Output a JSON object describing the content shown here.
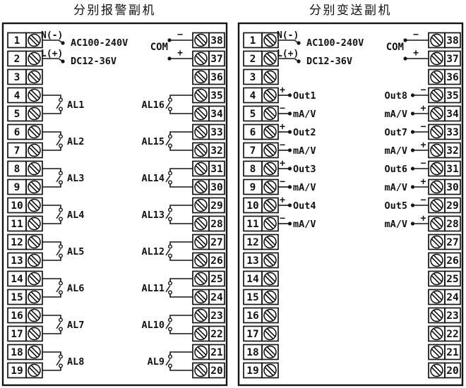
{
  "diagram": {
    "colors": {
      "line": "#151515",
      "background": "#ffffff"
    },
    "panels": [
      {
        "id": "alarm-secondary-unit",
        "title": "分别报警副机",
        "power": {
          "line1_terminal_label": "N(-)",
          "line2_terminal_label": "L(+)",
          "rating_line1": "AC100-240V",
          "rating_line2": "DC12-36V"
        },
        "com": {
          "label": "COM",
          "top_sign": "−",
          "bottom_sign": "+"
        },
        "left_terminals": [
          1,
          2,
          3,
          4,
          5,
          6,
          7,
          8,
          9,
          10,
          11,
          12,
          13,
          14,
          15,
          16,
          17,
          18,
          19
        ],
        "right_terminals": [
          38,
          37,
          36,
          35,
          34,
          33,
          32,
          31,
          30,
          29,
          28,
          27,
          26,
          25,
          24,
          23,
          22,
          21,
          20
        ],
        "switches_left": [
          {
            "terminals": [
              4,
              5
            ],
            "label": "AL1"
          },
          {
            "terminals": [
              6,
              7
            ],
            "label": "AL2"
          },
          {
            "terminals": [
              8,
              9
            ],
            "label": "AL3"
          },
          {
            "terminals": [
              10,
              11
            ],
            "label": "AL4"
          },
          {
            "terminals": [
              12,
              13
            ],
            "label": "AL5"
          },
          {
            "terminals": [
              14,
              15
            ],
            "label": "AL6"
          },
          {
            "terminals": [
              16,
              17
            ],
            "label": "AL7"
          },
          {
            "terminals": [
              18,
              19
            ],
            "label": "AL8"
          }
        ],
        "switches_right": [
          {
            "terminals": [
              35,
              34
            ],
            "label": "AL16"
          },
          {
            "terminals": [
              33,
              32
            ],
            "label": "AL15"
          },
          {
            "terminals": [
              31,
              30
            ],
            "label": "AL14"
          },
          {
            "terminals": [
              29,
              28
            ],
            "label": "AL13"
          },
          {
            "terminals": [
              27,
              26
            ],
            "label": "AL12"
          },
          {
            "terminals": [
              25,
              24
            ],
            "label": "AL11"
          },
          {
            "terminals": [
              23,
              22
            ],
            "label": "AL10"
          },
          {
            "terminals": [
              21,
              20
            ],
            "label": "AL9"
          }
        ],
        "outputs_left": [],
        "outputs_right": []
      },
      {
        "id": "transmitter-secondary-unit",
        "title": "分别变送副机",
        "power": {
          "line1_terminal_label": "N(-)",
          "line2_terminal_label": "L(+)",
          "rating_line1": "AC100-240V",
          "rating_line2": "DC12-36V"
        },
        "com": {
          "label": "COM",
          "top_sign": "−",
          "bottom_sign": "+"
        },
        "left_terminals": [
          1,
          2,
          3,
          4,
          5,
          6,
          7,
          8,
          9,
          10,
          11,
          12,
          13,
          14,
          15,
          16,
          17,
          18,
          19
        ],
        "right_terminals": [
          38,
          37,
          36,
          35,
          34,
          33,
          32,
          31,
          30,
          29,
          28,
          27,
          26,
          25,
          24,
          23,
          22,
          21,
          20
        ],
        "switches_left": [],
        "switches_right": [],
        "outputs_left": [
          {
            "terminal": 4,
            "sign": "+",
            "label": "Out1"
          },
          {
            "terminal": 5,
            "sign": "−",
            "label": "mA/V"
          },
          {
            "terminal": 6,
            "sign": "+",
            "label": "Out2"
          },
          {
            "terminal": 7,
            "sign": "−",
            "label": "mA/V"
          },
          {
            "terminal": 8,
            "sign": "+",
            "label": "Out3"
          },
          {
            "terminal": 9,
            "sign": "−",
            "label": "mA/V"
          },
          {
            "terminal": 10,
            "sign": "+",
            "label": "Out4"
          },
          {
            "terminal": 11,
            "sign": "−",
            "label": "mA/V"
          }
        ],
        "outputs_right": [
          {
            "terminal": 35,
            "sign": "−",
            "label": "Out8"
          },
          {
            "terminal": 34,
            "sign": "+",
            "label": "mA/V"
          },
          {
            "terminal": 33,
            "sign": "−",
            "label": "Out7"
          },
          {
            "terminal": 32,
            "sign": "+",
            "label": "mA/V"
          },
          {
            "terminal": 31,
            "sign": "−",
            "label": "Out6"
          },
          {
            "terminal": 30,
            "sign": "+",
            "label": "mA/V"
          },
          {
            "terminal": 29,
            "sign": "−",
            "label": "Out5"
          },
          {
            "terminal": 28,
            "sign": "+",
            "label": "mA/V"
          }
        ]
      }
    ]
  }
}
